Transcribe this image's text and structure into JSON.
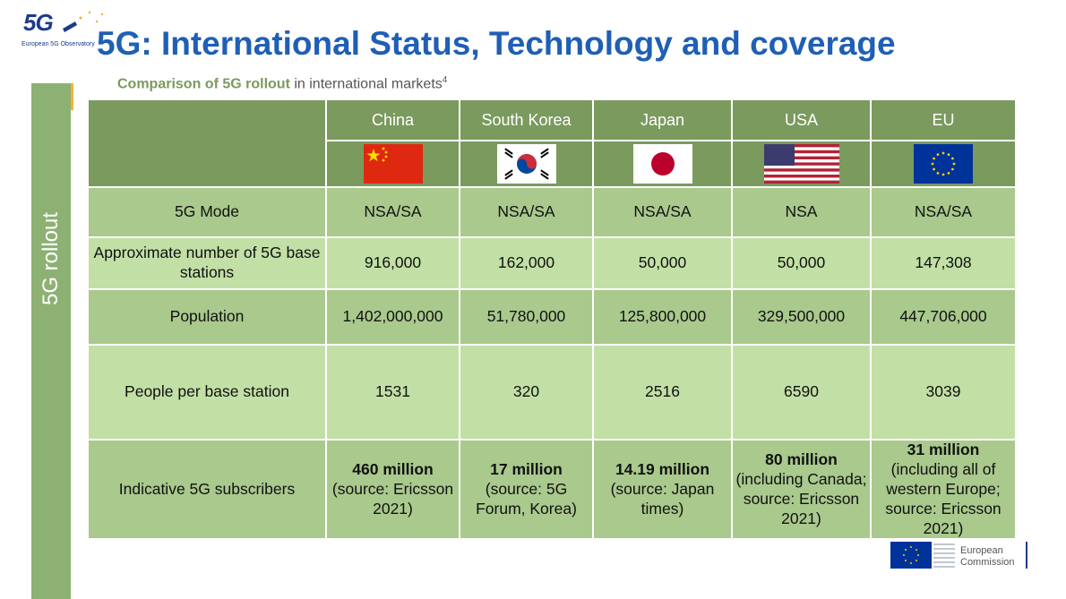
{
  "logo": {
    "mark": "5G",
    "subtitle": "European 5G Observatory"
  },
  "title": "5G: International Status, Technology and coverage",
  "side_label": "5G rollout",
  "subtitle": {
    "bold": "Comparison of 5G rollout",
    "rest": "in international markets",
    "sup": "4"
  },
  "table": {
    "countries": [
      {
        "name": "China",
        "flag": "china-flag-icon"
      },
      {
        "name": "South Korea",
        "flag": "south-korea-flag-icon"
      },
      {
        "name": "Japan",
        "flag": "japan-flag-icon"
      },
      {
        "name": "USA",
        "flag": "usa-flag-icon"
      },
      {
        "name": "EU",
        "flag": "eu-flag-icon"
      }
    ],
    "rows": [
      {
        "label": "5G Mode",
        "values": [
          "NSA/SA",
          "NSA/SA",
          "NSA/SA",
          "NSA",
          "NSA/SA"
        ]
      },
      {
        "label": "Approximate number of 5G base stations",
        "values": [
          "916,000",
          "162,000",
          "50,000",
          "50,000",
          "147,308"
        ]
      },
      {
        "label": "Population",
        "values": [
          "1,402,000,000",
          "51,780,000",
          "125,800,000",
          "329,500,000",
          "447,706,000"
        ]
      },
      {
        "label": "People per base station",
        "values": [
          "1531",
          "320",
          "2516",
          "6590",
          "3039"
        ]
      },
      {
        "label": "Indicative 5G subscribers",
        "values": [
          {
            "bold": "460 million",
            "rest": "(source: Ericsson 2021)"
          },
          {
            "bold": "17 million",
            "rest": "(source: 5G Forum, Korea)"
          },
          {
            "bold": "14.19 million",
            "rest": "(source: Japan times)"
          },
          {
            "bold": "80 million",
            "rest": "(including Canada; source: Ericsson 2021)"
          },
          {
            "bold": "31 million",
            "rest": "(including all of western Europe; source: Ericsson 2021)"
          }
        ]
      }
    ]
  },
  "footer_logo": {
    "line1": "European",
    "line2": "Commission"
  },
  "colors": {
    "title": "#1f5fb5",
    "header_bg": "#7a9a5e",
    "row_dark": "#a9c98d",
    "row_light": "#c2e0a6"
  }
}
